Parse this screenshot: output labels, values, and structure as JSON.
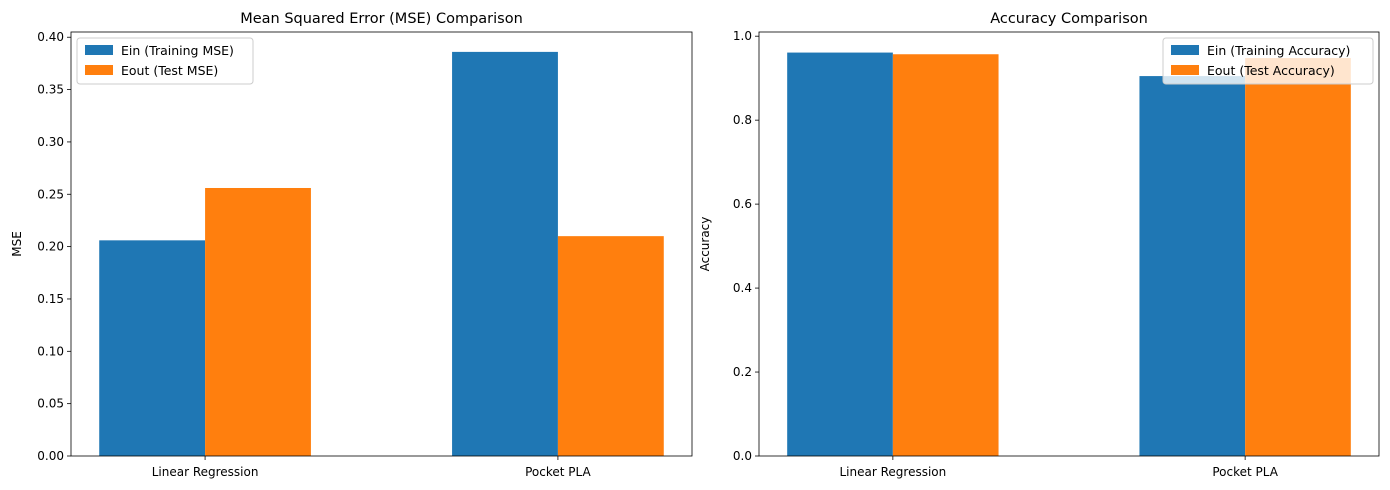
{
  "chart_data": [
    {
      "type": "bar",
      "title": "Mean Squared Error (MSE) Comparison",
      "xlabel": "",
      "ylabel": "MSE",
      "categories": [
        "Linear Regression",
        "Pocket PLA"
      ],
      "series": [
        {
          "name": "Ein (Training MSE)",
          "color": "#1f77b4",
          "values": [
            0.206,
            0.386
          ]
        },
        {
          "name": "Eout (Test MSE)",
          "color": "#ff7f0e",
          "values": [
            0.256,
            0.21
          ]
        }
      ],
      "ylim": [
        0,
        0.405
      ],
      "yticks": [
        "0.00",
        "0.05",
        "0.10",
        "0.15",
        "0.20",
        "0.25",
        "0.30",
        "0.35",
        "0.40"
      ],
      "legend": "top-left",
      "grid": false
    },
    {
      "type": "bar",
      "title": "Accuracy Comparison",
      "xlabel": "",
      "ylabel": "Accuracy",
      "categories": [
        "Linear Regression",
        "Pocket PLA"
      ],
      "series": [
        {
          "name": "Ein (Training Accuracy)",
          "color": "#1f77b4",
          "values": [
            0.961,
            0.905
          ]
        },
        {
          "name": "Eout (Test Accuracy)",
          "color": "#ff7f0e",
          "values": [
            0.957,
            0.948
          ]
        }
      ],
      "ylim": [
        0,
        1.01
      ],
      "yticks": [
        "0.0",
        "0.2",
        "0.4",
        "0.6",
        "0.8",
        "1.0"
      ],
      "legend": "top-right",
      "grid": false
    }
  ]
}
